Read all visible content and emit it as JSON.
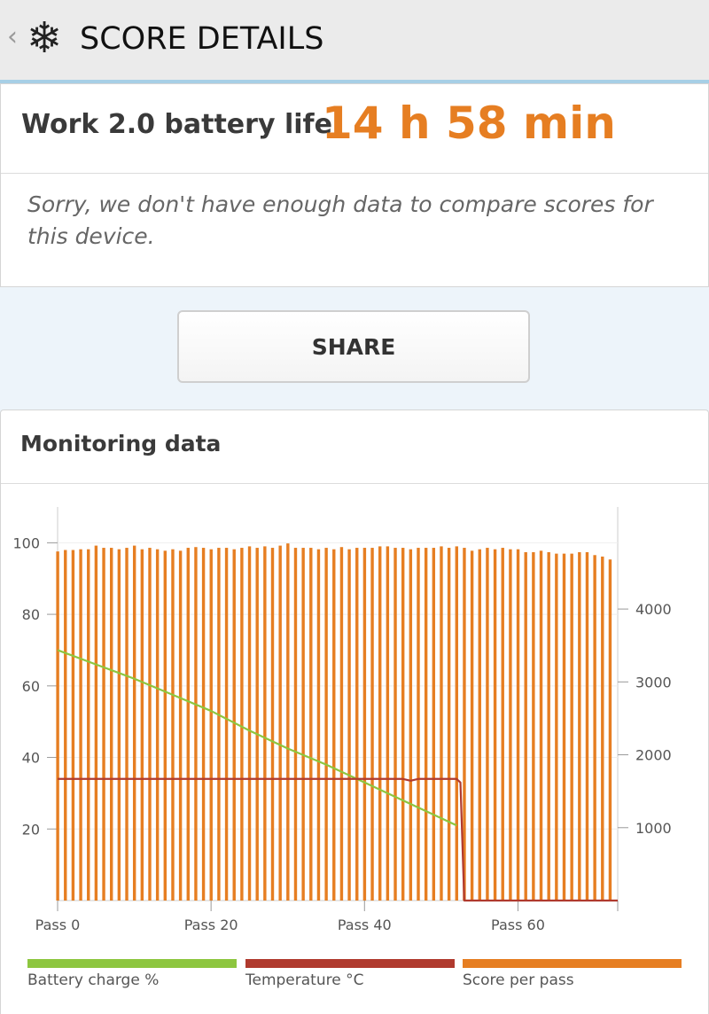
{
  "appbar": {
    "back_glyph": "‹",
    "logo_glyph": "❄",
    "logo_icon": "snowflake-icon",
    "title": "SCORE DETAILS"
  },
  "score": {
    "label": "Work 2.0 battery life",
    "value": "14 h 58 min",
    "note": "Sorry, we don't have enough data to compare scores for this device."
  },
  "share": {
    "label": "SHARE"
  },
  "monitoring": {
    "title": "Monitoring data",
    "legend": [
      {
        "label": "Battery charge %",
        "color": "#8dc63f"
      },
      {
        "label": "Temperature °C",
        "color": "#b03a2e"
      },
      {
        "label": "Score per pass",
        "color": "#e67e22"
      }
    ]
  },
  "chart_data": {
    "type": "bar",
    "x_tick_labels": [
      "Pass 0",
      "Pass 20",
      "Pass 40",
      "Pass 60"
    ],
    "x_tick_values": [
      0,
      20,
      40,
      60
    ],
    "xlim": [
      0,
      73
    ],
    "left_axis": {
      "ylim": [
        0,
        110
      ],
      "ticks": [
        20,
        40,
        60,
        80,
        100
      ]
    },
    "right_axis": {
      "ylim": [
        0,
        5400
      ],
      "ticks": [
        1000,
        2000,
        3000,
        4000
      ]
    },
    "grid": true,
    "legend_position": "bottom",
    "series": [
      {
        "name": "Score per pass",
        "type": "bar",
        "axis": "right",
        "color": "#e67e22",
        "values": [
          4790,
          4810,
          4810,
          4820,
          4820,
          4870,
          4840,
          4840,
          4820,
          4840,
          4870,
          4820,
          4840,
          4820,
          4800,
          4820,
          4800,
          4840,
          4850,
          4840,
          4820,
          4840,
          4840,
          4820,
          4840,
          4860,
          4840,
          4860,
          4840,
          4870,
          4900,
          4840,
          4840,
          4840,
          4820,
          4840,
          4820,
          4850,
          4820,
          4840,
          4840,
          4840,
          4860,
          4860,
          4840,
          4840,
          4820,
          4840,
          4840,
          4840,
          4860,
          4840,
          4860,
          4840,
          4800,
          4820,
          4840,
          4820,
          4840,
          4820,
          4820,
          4780,
          4780,
          4800,
          4780,
          4760,
          4760,
          4760,
          4780,
          4780,
          4740,
          4720,
          4680
        ]
      },
      {
        "name": "Battery charge %",
        "type": "line",
        "axis": "left",
        "color": "#8dc63f",
        "x": [
          0,
          5,
          10,
          15,
          20,
          25,
          30,
          35,
          40,
          45,
          50,
          52
        ],
        "values": [
          70,
          66,
          62,
          57.5,
          53,
          47.5,
          42.5,
          38,
          33,
          28,
          23,
          21
        ]
      },
      {
        "name": "Temperature °C",
        "type": "line",
        "axis": "left",
        "color": "#b03a2e",
        "x": [
          0,
          45,
          46,
          47,
          52,
          52.5,
          53,
          73
        ],
        "values": [
          34,
          34,
          33.5,
          34,
          34,
          33,
          0,
          0
        ]
      }
    ]
  }
}
